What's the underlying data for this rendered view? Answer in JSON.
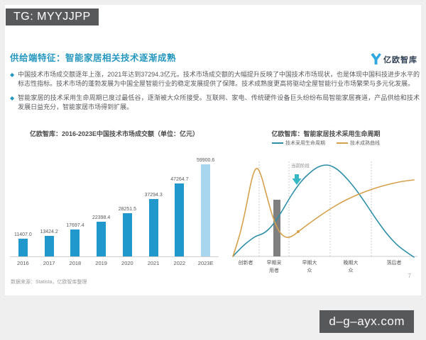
{
  "overlays": {
    "tg_badge": "TG: MYYJJPP",
    "site_badge": "d–g–ayx.com"
  },
  "header": {
    "title": "供给端特征：智能家居相关技术逐渐成熟",
    "logo_text": "亿欧智库",
    "accent_color": "#2697BD"
  },
  "bullets": {
    "glyph": "◆",
    "items": [
      "中国技术市场成交额逐年上涨，2021年达到37294.3亿元。技术市场成交额的大幅提升反映了中国技术市场现状，也是体现中国科技进步水平的标志性指标。技术市场的蓬勃发展为中国全屋智能行业的稳定发展提供了保障。技术成熟度更高将驱动全屋智能行业市场繁荣与多元化发展。",
      "智能家居的技术采用生命周期已度过最低谷，逐渐被大众所接受。互联网、家电、传统硬件设备巨头纷纷布局智能家居赛道，产品供给和技术发展日益充分，智能家居市场得到扩展。"
    ]
  },
  "chart_data": [
    {
      "type": "bar",
      "title": "亿欧智库：2016-2023E中国技术市场成交额（单位：亿元）",
      "unit": "亿元",
      "categories": [
        "2016",
        "2017",
        "2018",
        "2019",
        "2020",
        "2021",
        "2022",
        "2023E"
      ],
      "values": [
        11407.0,
        13424.2,
        17697.4,
        22398.4,
        28251.5,
        37294.3,
        47264.7,
        59900.6
      ],
      "value_labels": [
        "11407.0",
        "13424.2",
        "17697.4",
        "22398.4",
        "28251.5",
        "37294.3",
        "47264.7",
        "59900.6"
      ],
      "bar_color": "#2098CB",
      "highlight_color": "#A8D6EE",
      "highlight_index": 7,
      "xlabel": "",
      "ylabel": "",
      "ylim": [
        0,
        62000
      ],
      "grid": false
    },
    {
      "type": "line",
      "title": "亿欧智库：智能家居技术采用生命周期",
      "legend": [
        {
          "label": "技术采用生命周期",
          "color": "#2E8FA6"
        },
        {
          "label": "技术成熟曲线",
          "color": "#D6A14C"
        }
      ],
      "legend_position": "top-center",
      "stages": [
        "创新者",
        "早期采用者",
        "早期大众",
        "晚期大众",
        "落后者"
      ],
      "stage_centers": [
        18,
        58,
        108,
        166,
        227
      ],
      "boundaries": [
        37,
        79,
        137,
        195
      ],
      "annotation": "当前阶段",
      "annotation_color": "#36B8C4",
      "chasm": {
        "x": 57,
        "y": 60,
        "w": 10,
        "h": 80
      },
      "marker": {
        "x": 92,
        "y": 105,
        "color": "#D6A14C"
      },
      "series": [
        {
          "name": "技术采用生命周期",
          "color": "#2E8FA6",
          "points": [
            [
              0,
              140
            ],
            [
              12,
              127
            ],
            [
              24,
              117
            ],
            [
              33,
              111
            ],
            [
              40,
              109
            ],
            [
              47,
              105
            ],
            [
              55,
              97
            ],
            [
              63,
              86
            ],
            [
              71,
              73
            ],
            [
              79,
              59
            ],
            [
              88,
              45
            ],
            [
              97,
              33
            ],
            [
              107,
              23
            ],
            [
              117,
              15
            ],
            [
              127,
              11
            ],
            [
              136,
              11
            ],
            [
              146,
              16
            ],
            [
              156,
              25
            ],
            [
              170,
              41
            ],
            [
              185,
              62
            ],
            [
              200,
              85
            ],
            [
              215,
              106
            ],
            [
              230,
              123
            ],
            [
              243,
              133
            ],
            [
              255,
              141
            ]
          ]
        },
        {
          "name": "技术成熟曲线",
          "color": "#D6A14C",
          "points": [
            [
              0,
              140
            ],
            [
              8,
              116
            ],
            [
              15,
              88
            ],
            [
              21,
              58
            ],
            [
              27,
              28
            ],
            [
              33,
              13
            ],
            [
              39,
              22
            ],
            [
              46,
              48
            ],
            [
              54,
              78
            ],
            [
              62,
              100
            ],
            [
              70,
              111
            ],
            [
              78,
              114
            ],
            [
              86,
              110
            ],
            [
              96,
              102
            ],
            [
              108,
              93
            ],
            [
              122,
              83
            ],
            [
              137,
              73
            ],
            [
              152,
              64
            ],
            [
              168,
              56
            ],
            [
              185,
              49
            ],
            [
              202,
              43
            ],
            [
              220,
              38
            ],
            [
              238,
              34
            ],
            [
              255,
              32
            ]
          ]
        }
      ],
      "grid": false
    }
  ],
  "footer": {
    "source": "数据来源：Statista，亿欧智库整理",
    "page": "7"
  }
}
